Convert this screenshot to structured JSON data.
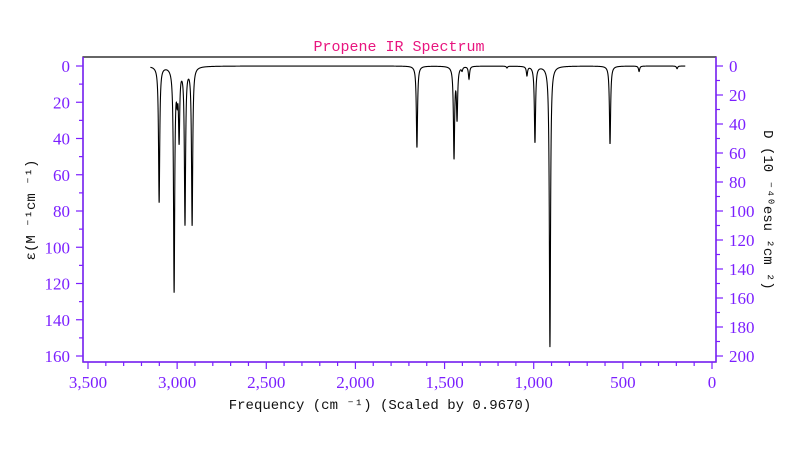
{
  "chart_data": {
    "type": "line",
    "title": "Propene IR Spectrum",
    "xlabel": "Frequency (cm ⁻¹) (Scaled by 0.9670)",
    "ylabel": "ε(M ⁻¹cm ⁻¹)",
    "ylabel_right": "D (10 ⁻⁴⁰esu ²cm ²)",
    "xlim": [
      3500,
      0
    ],
    "ylim": [
      0,
      160
    ],
    "ylim_right": [
      0,
      200
    ],
    "y_inverted": true,
    "xticks": [
      "3,500",
      "3,000",
      "2,500",
      "2,000",
      "1,500",
      "1,000",
      "500",
      "0"
    ],
    "xtick_values": [
      3500,
      3000,
      2500,
      2000,
      1500,
      1000,
      500,
      0
    ],
    "yticks": [
      0,
      20,
      40,
      60,
      80,
      100,
      120,
      140,
      160
    ],
    "yticks_right": [
      0,
      20,
      40,
      60,
      80,
      100,
      120,
      140,
      160,
      180,
      200
    ],
    "x_range_plotted": [
      3150,
      150
    ],
    "line_width_hwhm": 4,
    "peaks": [
      {
        "freq": 3101,
        "epsilon": 75
      },
      {
        "freq": 3017,
        "epsilon": 123
      },
      {
        "freq": 3000,
        "epsilon": 12
      },
      {
        "freq": 2989,
        "epsilon": 38
      },
      {
        "freq": 2956,
        "epsilon": 86
      },
      {
        "freq": 2916,
        "epsilon": 87
      },
      {
        "freq": 1655,
        "epsilon": 45
      },
      {
        "freq": 1447,
        "epsilon": 50
      },
      {
        "freq": 1430,
        "epsilon": 28
      },
      {
        "freq": 1402,
        "epsilon": 2
      },
      {
        "freq": 1363,
        "epsilon": 7
      },
      {
        "freq": 1150,
        "epsilon": 1
      },
      {
        "freq": 1038,
        "epsilon": 5
      },
      {
        "freq": 993,
        "epsilon": 42
      },
      {
        "freq": 909,
        "epsilon": 155
      },
      {
        "freq": 572,
        "epsilon": 43
      },
      {
        "freq": 409,
        "epsilon": 3
      },
      {
        "freq": 196,
        "epsilon": 1.5
      }
    ],
    "colors": {
      "axis": "#7b1fff",
      "title": "#e8157f",
      "line": "#000000"
    }
  }
}
